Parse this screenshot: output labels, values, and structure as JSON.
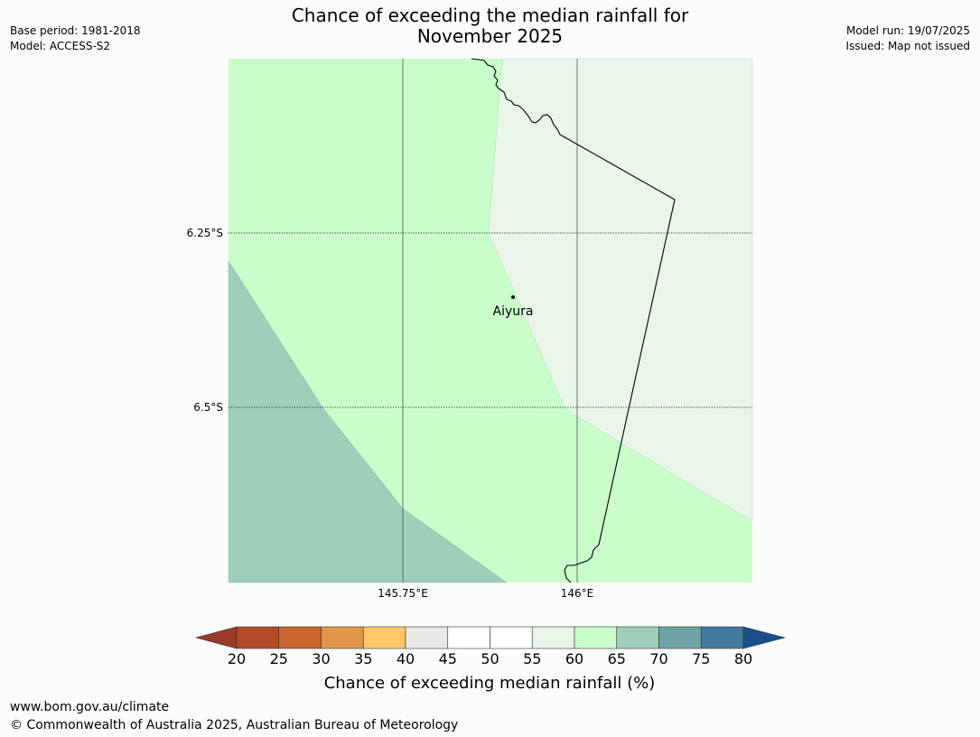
{
  "header": {
    "title_line1": "Chance of exceeding the median rainfall for",
    "title_line2": "November 2025",
    "base_period": "Base period: 1981-2018",
    "model": "Model: ACCESS-S2",
    "model_run": "Model run: 19/07/2025",
    "issued": "Issued: Map not issued"
  },
  "map": {
    "lat_labels": [
      "6.25°S",
      "6.5°S"
    ],
    "lon_labels": [
      "145.75°E",
      "146°E"
    ],
    "place": {
      "name": "Aiyura"
    },
    "region_colors": {
      "c55_60": "#e9f5e8",
      "c60_65": "#c9fdca",
      "c65_70": "#9dcfb9"
    }
  },
  "colorbar": {
    "label": "Chance of exceeding median rainfall (%)",
    "ticks": [
      "20",
      "25",
      "30",
      "35",
      "40",
      "45",
      "50",
      "55",
      "60",
      "65",
      "70",
      "75",
      "80"
    ],
    "under_color": "#9b3a26",
    "over_color": "#1a4e87",
    "colors": [
      "#b34a26",
      "#cc642f",
      "#e2954a",
      "#fec966",
      "#e9eae5",
      "#ffffff",
      "#ffffff",
      "#e9f5e8",
      "#c9fdca",
      "#9dcfb9",
      "#6fa4a6",
      "#417b9e"
    ]
  },
  "footer": {
    "url": "www.bom.gov.au/climate",
    "copyright": "© Commonwealth of Australia 2025, Australian Bureau of Meteorology"
  }
}
